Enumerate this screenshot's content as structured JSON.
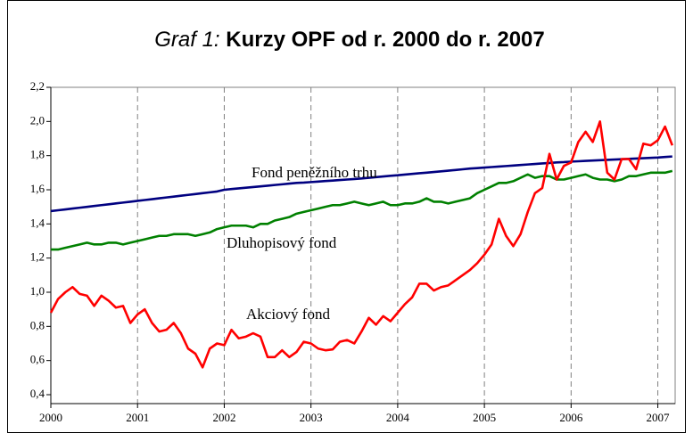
{
  "chart_data": {
    "type": "line",
    "title": [
      "Graf 1:",
      "Kurzy OPF od r. 2000 do r. 2007"
    ],
    "x": [
      2000,
      2000.083,
      2000.167,
      2000.25,
      2000.333,
      2000.417,
      2000.5,
      2000.583,
      2000.667,
      2000.75,
      2000.833,
      2000.917,
      2001,
      2001.083,
      2001.167,
      2001.25,
      2001.333,
      2001.417,
      2001.5,
      2001.583,
      2001.667,
      2001.75,
      2001.833,
      2001.917,
      2002,
      2002.083,
      2002.167,
      2002.25,
      2002.333,
      2002.417,
      2002.5,
      2002.583,
      2002.667,
      2002.75,
      2002.833,
      2002.917,
      2003,
      2003.083,
      2003.167,
      2003.25,
      2003.333,
      2003.417,
      2003.5,
      2003.583,
      2003.667,
      2003.75,
      2003.833,
      2003.917,
      2004,
      2004.083,
      2004.167,
      2004.25,
      2004.333,
      2004.417,
      2004.5,
      2004.583,
      2004.667,
      2004.75,
      2004.833,
      2004.917,
      2005,
      2005.083,
      2005.167,
      2005.25,
      2005.333,
      2005.417,
      2005.5,
      2005.583,
      2005.667,
      2005.75,
      2005.833,
      2005.917,
      2006,
      2006.083,
      2006.167,
      2006.25,
      2006.333,
      2006.417,
      2006.5,
      2006.583,
      2006.667,
      2006.75,
      2006.833,
      2006.917,
      2007,
      2007.083,
      2007.167
    ],
    "series": [
      {
        "name": "Fond peněžního trhu",
        "color": "#000080",
        "values": [
          1.475,
          1.48,
          1.485,
          1.49,
          1.495,
          1.5,
          1.505,
          1.51,
          1.515,
          1.52,
          1.525,
          1.53,
          1.535,
          1.54,
          1.545,
          1.55,
          1.555,
          1.56,
          1.565,
          1.57,
          1.575,
          1.58,
          1.585,
          1.59,
          1.6,
          1.604,
          1.608,
          1.612,
          1.616,
          1.62,
          1.624,
          1.628,
          1.632,
          1.636,
          1.64,
          1.642,
          1.645,
          1.648,
          1.651,
          1.654,
          1.657,
          1.66,
          1.663,
          1.666,
          1.67,
          1.674,
          1.678,
          1.682,
          1.685,
          1.689,
          1.693,
          1.697,
          1.7,
          1.704,
          1.708,
          1.712,
          1.716,
          1.72,
          1.724,
          1.727,
          1.73,
          1.733,
          1.736,
          1.739,
          1.742,
          1.745,
          1.748,
          1.751,
          1.754,
          1.757,
          1.76,
          1.762,
          1.765,
          1.767,
          1.769,
          1.771,
          1.773,
          1.775,
          1.777,
          1.779,
          1.781,
          1.783,
          1.785,
          1.787,
          1.789,
          1.792,
          1.795
        ]
      },
      {
        "name": "Dluhopisový fond",
        "color": "#008000",
        "values": [
          1.25,
          1.25,
          1.26,
          1.27,
          1.28,
          1.29,
          1.28,
          1.28,
          1.29,
          1.29,
          1.28,
          1.29,
          1.3,
          1.31,
          1.32,
          1.33,
          1.33,
          1.34,
          1.34,
          1.34,
          1.33,
          1.34,
          1.35,
          1.37,
          1.38,
          1.39,
          1.39,
          1.39,
          1.38,
          1.4,
          1.4,
          1.42,
          1.43,
          1.44,
          1.46,
          1.47,
          1.48,
          1.49,
          1.5,
          1.51,
          1.51,
          1.52,
          1.53,
          1.52,
          1.51,
          1.52,
          1.53,
          1.51,
          1.51,
          1.52,
          1.52,
          1.53,
          1.55,
          1.53,
          1.53,
          1.52,
          1.53,
          1.54,
          1.55,
          1.58,
          1.6,
          1.62,
          1.64,
          1.64,
          1.65,
          1.67,
          1.69,
          1.67,
          1.68,
          1.68,
          1.66,
          1.66,
          1.67,
          1.68,
          1.69,
          1.67,
          1.66,
          1.66,
          1.65,
          1.66,
          1.68,
          1.68,
          1.69,
          1.7,
          1.7,
          1.7,
          1.71
        ]
      },
      {
        "name": "Akciový fond",
        "color": "#ff0000",
        "values": [
          0.88,
          0.96,
          1.0,
          1.03,
          0.99,
          0.98,
          0.92,
          0.98,
          0.95,
          0.91,
          0.92,
          0.82,
          0.87,
          0.9,
          0.82,
          0.77,
          0.78,
          0.82,
          0.76,
          0.67,
          0.64,
          0.56,
          0.67,
          0.7,
          0.69,
          0.78,
          0.73,
          0.74,
          0.76,
          0.74,
          0.62,
          0.62,
          0.66,
          0.62,
          0.65,
          0.71,
          0.7,
          0.67,
          0.66,
          0.665,
          0.71,
          0.72,
          0.7,
          0.77,
          0.85,
          0.81,
          0.86,
          0.83,
          0.88,
          0.93,
          0.97,
          1.05,
          1.05,
          1.01,
          1.03,
          1.04,
          1.07,
          1.1,
          1.13,
          1.17,
          1.22,
          1.28,
          1.43,
          1.33,
          1.27,
          1.34,
          1.47,
          1.58,
          1.61,
          1.81,
          1.66,
          1.74,
          1.76,
          1.88,
          1.94,
          1.88,
          2.0,
          1.7,
          1.66,
          1.78,
          1.78,
          1.72,
          1.87,
          1.86,
          1.89,
          1.97,
          1.86
        ]
      }
    ],
    "xlim": [
      2000,
      2007.2
    ],
    "xticks": [
      2000,
      2001,
      2002,
      2003,
      2004,
      2005,
      2006,
      2007
    ],
    "ylim": [
      0.4,
      2.2
    ],
    "yticks": [
      {
        "value": 0.4,
        "label": "0,4"
      },
      {
        "value": 0.6,
        "label": "0,6"
      },
      {
        "value": 0.8,
        "label": "0,8"
      },
      {
        "value": 1.0,
        "label": "1,0"
      },
      {
        "value": 1.2,
        "label": "1,2"
      },
      {
        "value": 1.4,
        "label": "1,4"
      },
      {
        "value": 1.6,
        "label": "1,6"
      },
      {
        "value": 1.8,
        "label": "1,8"
      },
      {
        "value": 2.0,
        "label": "2,0"
      },
      {
        "value": 2.2,
        "label": "2,2"
      }
    ],
    "grid": "x"
  }
}
